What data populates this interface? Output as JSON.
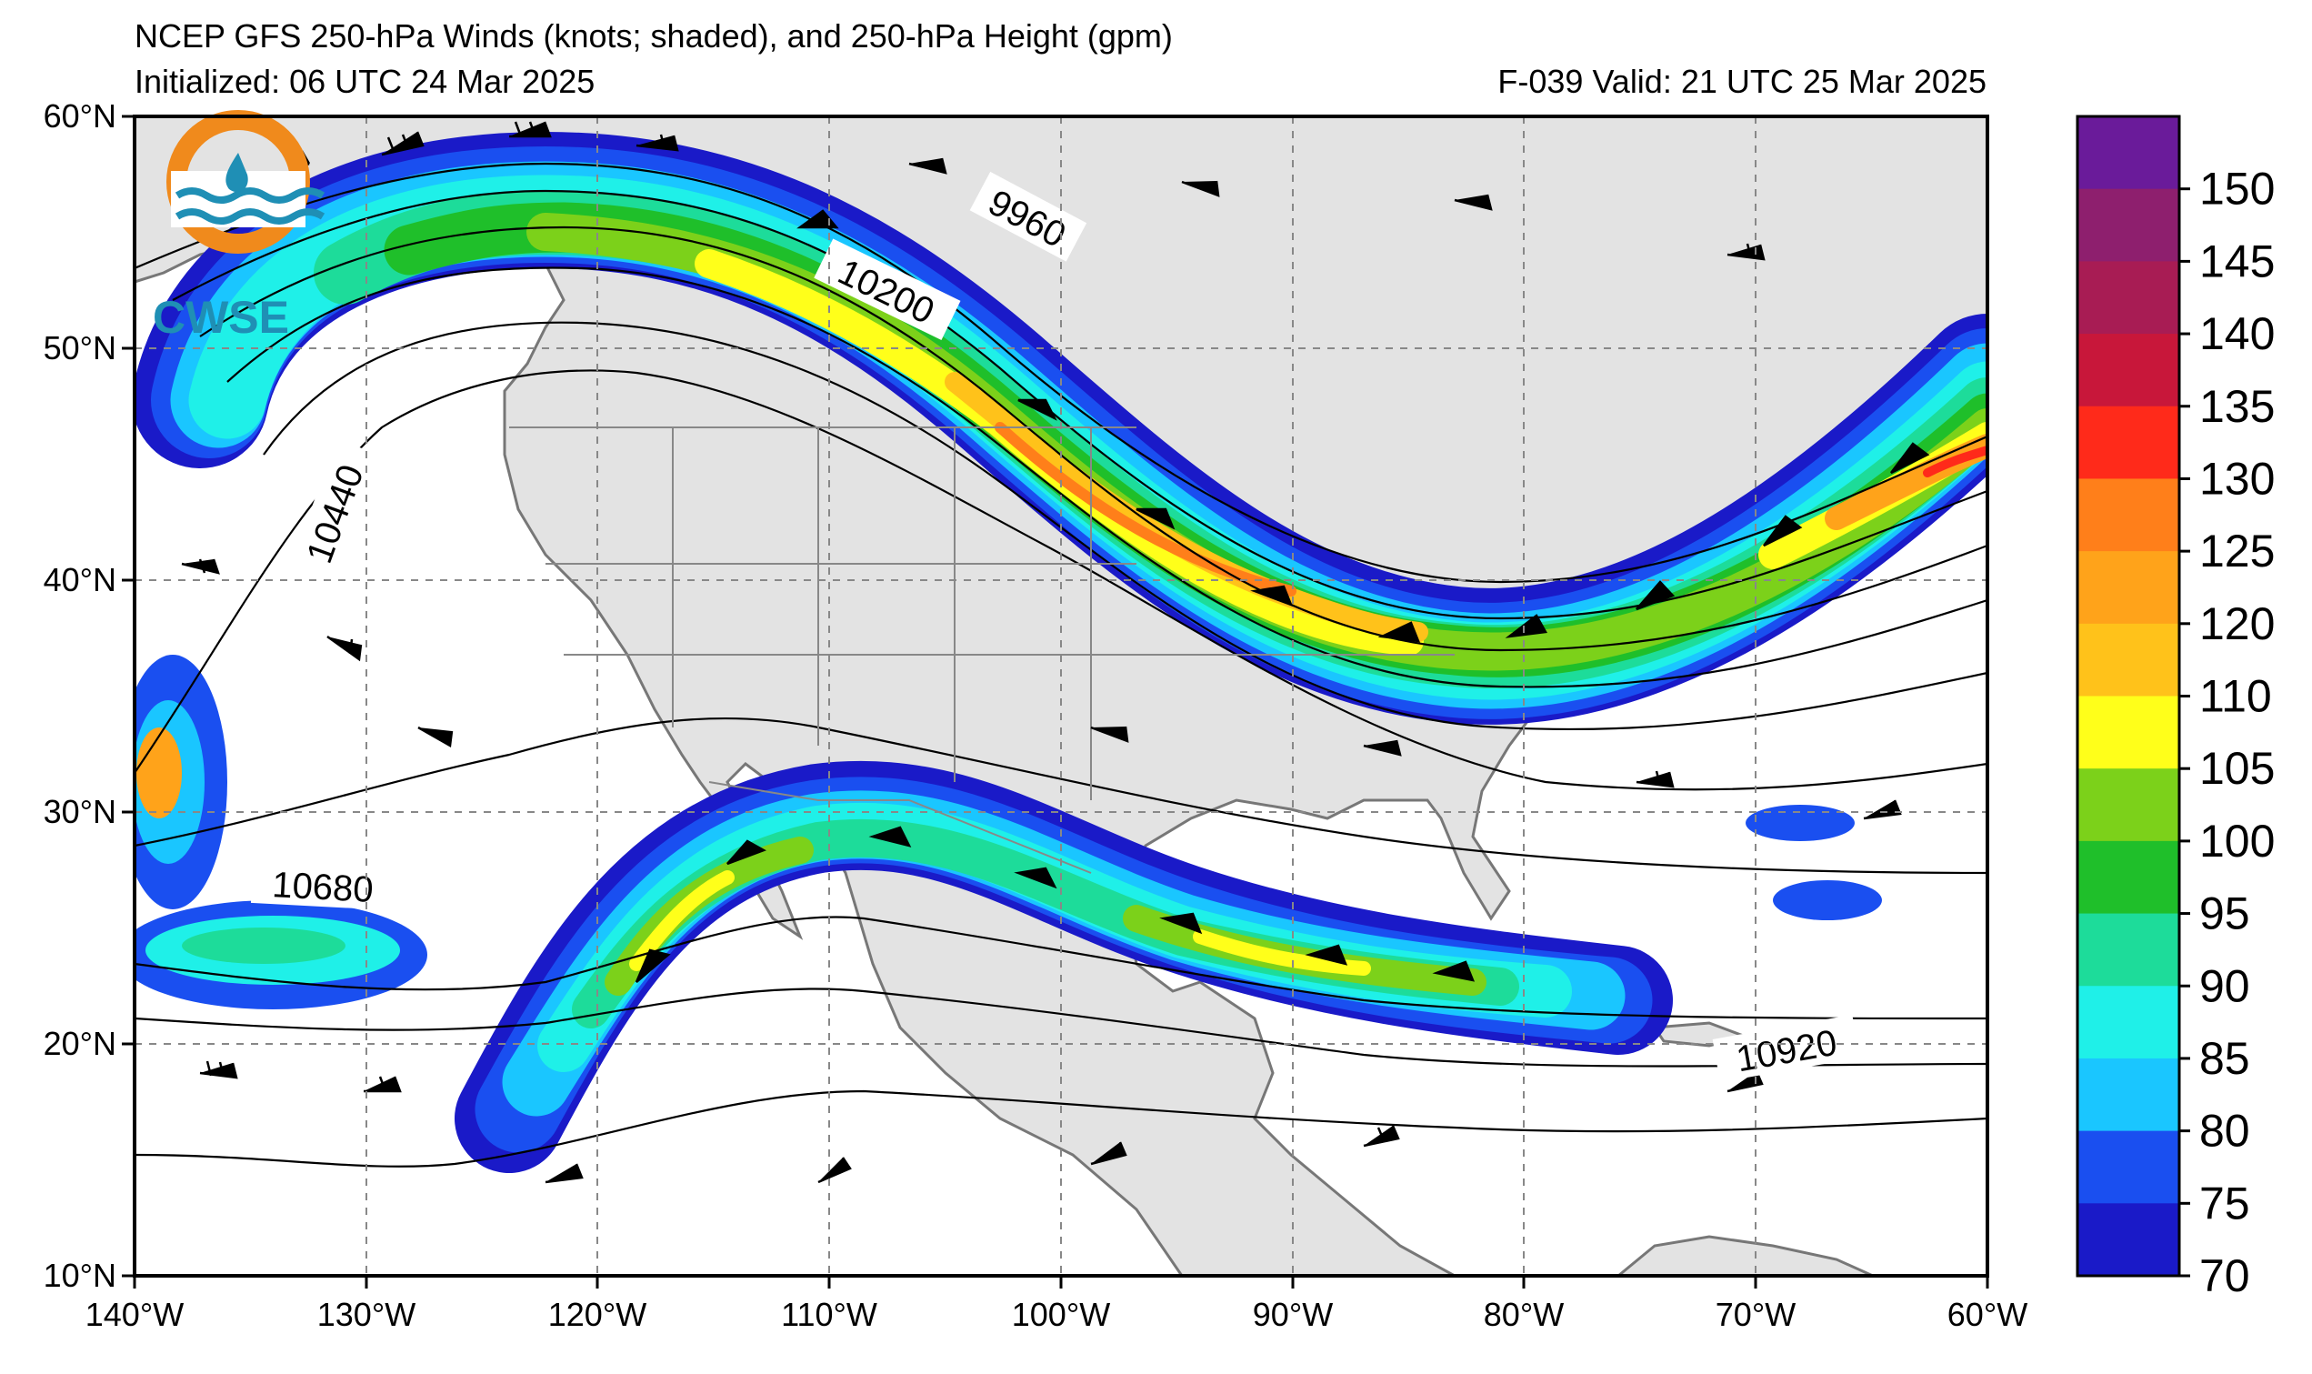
{
  "header": {
    "title": "NCEP GFS 250-hPa Winds (knots; shaded), and 250-hPa Height (gpm)",
    "initialized": "Initialized: 06 UTC 24 Mar 2025",
    "valid": "F-039  Valid: 21 UTC 25 Mar 2025"
  },
  "logo": {
    "text": "CWSE"
  },
  "axes": {
    "lon_labels": [
      "140°W",
      "130°W",
      "120°W",
      "110°W",
      "100°W",
      "90°W",
      "80°W",
      "70°W",
      "60°W"
    ],
    "lat_labels": [
      "60°N",
      "50°N",
      "40°N",
      "30°N",
      "20°N",
      "10°N"
    ]
  },
  "contour_labels": [
    "9960",
    "10200",
    "10440",
    "10680",
    "10920"
  ],
  "colorbar": {
    "labels": [
      "150",
      "145",
      "140",
      "135",
      "130",
      "125",
      "120",
      "110",
      "105",
      "100",
      "95",
      "90",
      "85",
      "80",
      "75",
      "70"
    ],
    "colors": [
      "#6a1b9a",
      "#8e1f6e",
      "#a81c54",
      "#c8173a",
      "#ff2a1a",
      "#ff7f1a",
      "#ffa31a",
      "#ffc21a",
      "#ffff1a",
      "#7cd11a",
      "#1fbf2a",
      "#1ddc9a",
      "#1ff0e8",
      "#1ac6ff",
      "#1a4ff0",
      "#1a1ac8"
    ]
  },
  "chart_data": {
    "type": "heatmap",
    "title": "NCEP GFS 250-hPa Winds (knots; shaded), and 250-hPa Height (gpm)",
    "x_range_deg": [
      -140,
      -60
    ],
    "y_range_deg": [
      10,
      60
    ],
    "wind_shading_levels_kt": [
      70,
      75,
      80,
      85,
      90,
      95,
      100,
      105,
      110,
      120,
      125,
      130,
      135,
      140,
      145,
      150
    ],
    "height_contour_labels_gpm": [
      9960,
      10200,
      10440,
      10680,
      10920
    ],
    "grid": true
  }
}
